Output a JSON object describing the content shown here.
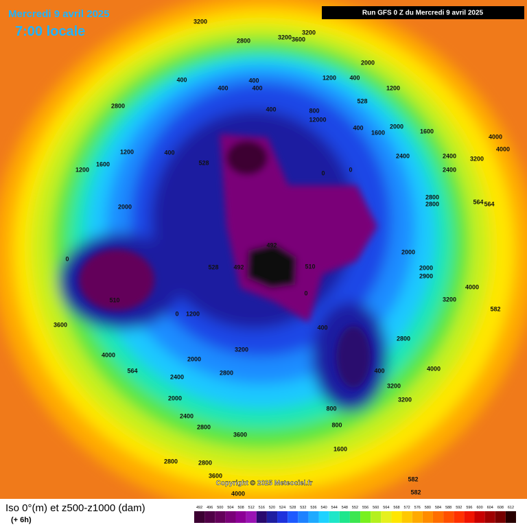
{
  "header": {
    "date": "Mercredi 9 avril 2025",
    "time": "7:00 locale",
    "run": "Run GFS 0 Z du Mercredi 9 avril 2025"
  },
  "footer": {
    "title": "Iso 0°(m) et z500-z1000 (dam)",
    "step": "(+ 6h)",
    "copyright": "Copyright © 2025 Meteociel.fr"
  },
  "legend": {
    "values": [
      492,
      496,
      500,
      504,
      508,
      512,
      516,
      520,
      524,
      528,
      532,
      536,
      540,
      544,
      548,
      552,
      556,
      560,
      564,
      568,
      572,
      576,
      580,
      584,
      588,
      592,
      596,
      600,
      604,
      608,
      612
    ],
    "colors": [
      "#3c0032",
      "#500046",
      "#64005a",
      "#7a0078",
      "#8c0096",
      "#9a14b4",
      "#2a0a6e",
      "#1e1ea0",
      "#1e32dc",
      "#1e5aff",
      "#1e82ff",
      "#1eaaff",
      "#1ed2ff",
      "#1ee6c8",
      "#1ee68c",
      "#3ce650",
      "#78f01e",
      "#b4f01e",
      "#e6f01e",
      "#ffe600",
      "#ffc800",
      "#ffaa00",
      "#ff8c00",
      "#ff6e00",
      "#ff5000",
      "#ff3200",
      "#f01400",
      "#c80000",
      "#a00000",
      "#780000",
      "#280000"
    ]
  },
  "map_labels": [
    "3200",
    "2800",
    "3200",
    "3600",
    "3200",
    "2000",
    "400",
    "400",
    "400",
    "400",
    "1200",
    "400",
    "1200",
    "2800",
    "400",
    "800",
    "12000",
    "528",
    "2000",
    "1600",
    "400",
    "1600",
    "4000",
    "4000",
    "1200",
    "1600",
    "400",
    "528",
    "0",
    "0",
    "2400",
    "2400",
    "3200",
    "2400",
    "1200",
    "2800",
    "2800",
    "564",
    "564",
    "2000",
    "492",
    "492",
    "528",
    "510",
    "510",
    "2000",
    "2000",
    "2900",
    "4000",
    "3200",
    "582",
    "0",
    "0",
    "1200",
    "3600",
    "0",
    "400",
    "2800",
    "4000",
    "3200",
    "2000",
    "564",
    "2400",
    "2800",
    "400",
    "4000",
    "3200",
    "3200",
    "2000",
    "2400",
    "2800",
    "800",
    "800",
    "3600",
    "1600",
    "2800",
    "2800",
    "3600",
    "582",
    "582",
    "4000"
  ]
}
